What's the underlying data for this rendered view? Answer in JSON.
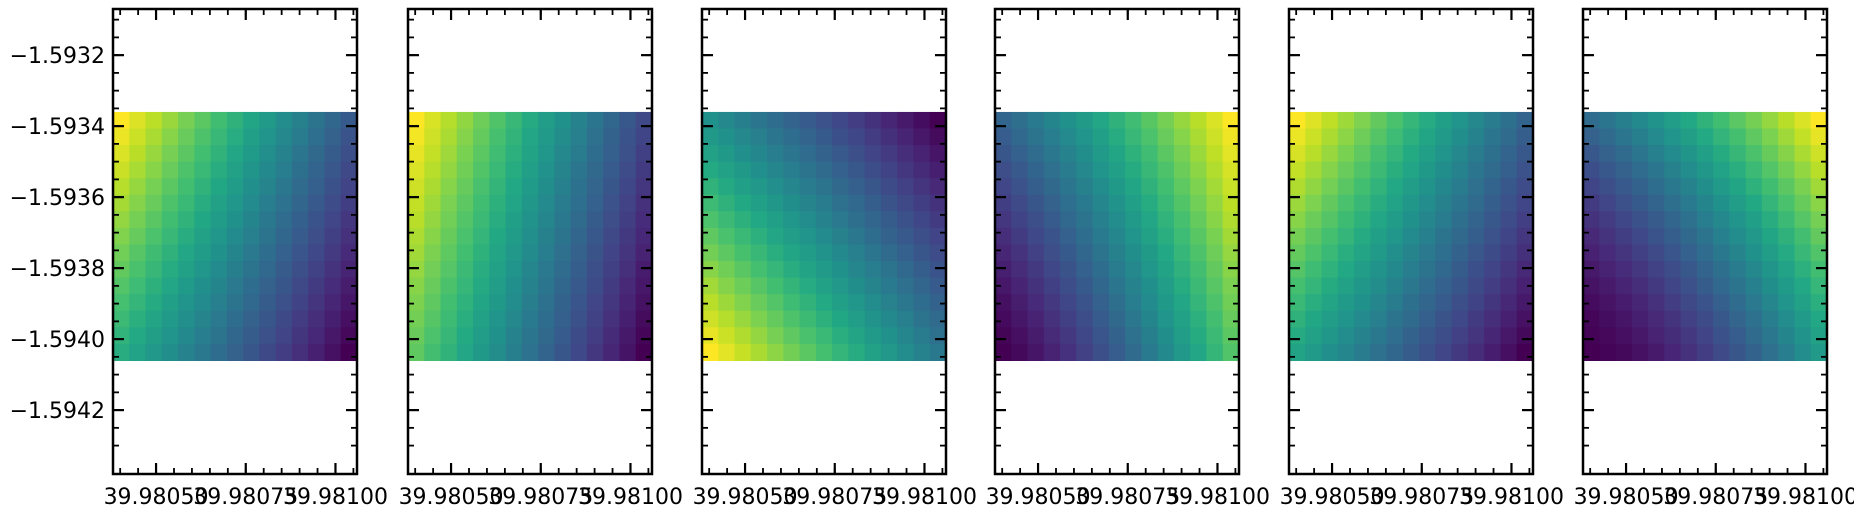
{
  "chart_data": {
    "type": "heatmap",
    "colormap": "viridis",
    "panel_count": 6,
    "sharey": true,
    "xlim": [
      39.98038,
      39.98106
    ],
    "ylim": [
      -1.59438,
      -1.59307
    ],
    "image_extent": {
      "x": [
        39.98038,
        39.98106
      ],
      "y": [
        -1.59406,
        -1.59336
      ]
    },
    "grid_shape": {
      "rows": 15,
      "cols": 15
    },
    "xticks": [
      39.9805,
      39.98075,
      39.981
    ],
    "xtick_labels": [
      "39.98050",
      "39.98075",
      "39.98100"
    ],
    "yticks": [
      -1.5932,
      -1.5934,
      -1.5936,
      -1.5938,
      -1.594,
      -1.5942
    ],
    "ytick_labels": [
      "−1.5932",
      "−1.5934",
      "−1.5936",
      "−1.5938",
      "−1.5940",
      "−1.5942"
    ],
    "title": "",
    "xlabel": "",
    "ylabel": "",
    "grid": false,
    "legend": "none",
    "panels": [
      {
        "field": {
          "top_left": 1.0,
          "top_right": 0.28,
          "bottom_left": 0.62,
          "bottom_right": 0.0,
          "shape": 1.0
        }
      },
      {
        "field": {
          "top_left": 1.0,
          "top_right": 0.22,
          "bottom_left": 0.75,
          "bottom_right": 0.0,
          "shape": 1.0
        }
      },
      {
        "field": {
          "top_left": 0.5,
          "top_right": 0.0,
          "bottom_left": 1.0,
          "bottom_right": 0.4,
          "shape": 1.0
        }
      },
      {
        "field": {
          "top_left": 0.42,
          "top_right": 1.0,
          "bottom_left": 0.0,
          "bottom_right": 0.78,
          "shape": 1.3
        }
      },
      {
        "field": {
          "top_left": 1.0,
          "top_right": 0.32,
          "bottom_left": 0.58,
          "bottom_right": 0.0,
          "shape": 1.0
        }
      },
      {
        "field": {
          "top_left": 0.52,
          "top_right": 1.0,
          "bottom_left": 0.0,
          "bottom_right": 0.68,
          "shape": 1.6
        }
      }
    ]
  }
}
